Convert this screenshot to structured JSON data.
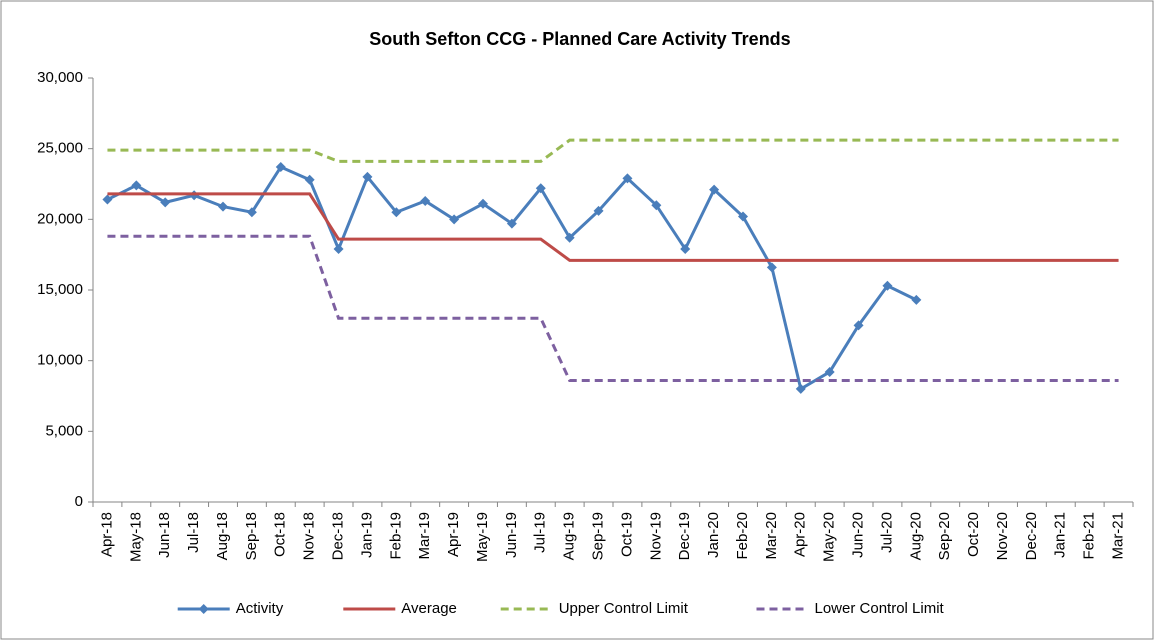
{
  "chart_data": {
    "type": "line",
    "title": "South Sefton CCG - Planned Care Activity Trends",
    "categories": [
      "Apr-18",
      "May-18",
      "Jun-18",
      "Jul-18",
      "Aug-18",
      "Sep-18",
      "Oct-18",
      "Nov-18",
      "Dec-18",
      "Jan-19",
      "Feb-19",
      "Mar-19",
      "Apr-19",
      "May-19",
      "Jun-19",
      "Jul-19",
      "Aug-19",
      "Sep-19",
      "Oct-19",
      "Nov-19",
      "Dec-19",
      "Jan-20",
      "Feb-20",
      "Mar-20",
      "Apr-20",
      "May-20",
      "Jun-20",
      "Jul-20",
      "Aug-20",
      "Sep-20",
      "Oct-20",
      "Nov-20",
      "Dec-20",
      "Jan-21",
      "Feb-21",
      "Mar-21"
    ],
    "series": [
      {
        "name": "Activity",
        "color": "#4a7ebb",
        "dash": "solid",
        "marker": "diamond",
        "values": [
          21400,
          22400,
          21200,
          21700,
          20900,
          20500,
          23700,
          22800,
          17900,
          23000,
          20500,
          21300,
          20000,
          21100,
          19700,
          22200,
          18700,
          20600,
          22900,
          21000,
          17900,
          22100,
          20200,
          16600,
          8000,
          9200,
          12500,
          15300,
          14300,
          null,
          null,
          null,
          null,
          null,
          null,
          null
        ]
      },
      {
        "name": "Average",
        "color": "#be4b48",
        "dash": "solid",
        "values": [
          21800,
          21800,
          21800,
          21800,
          21800,
          21800,
          21800,
          21800,
          18600,
          18600,
          18600,
          18600,
          18600,
          18600,
          18600,
          18600,
          17100,
          17100,
          17100,
          17100,
          17100,
          17100,
          17100,
          17100,
          17100,
          17100,
          17100,
          17100,
          17100,
          17100,
          17100,
          17100,
          17100,
          17100,
          17100,
          17100
        ]
      },
      {
        "name": "Upper Control Limit",
        "color": "#98b954",
        "dash": "dashed",
        "values": [
          24900,
          24900,
          24900,
          24900,
          24900,
          24900,
          24900,
          24900,
          24100,
          24100,
          24100,
          24100,
          24100,
          24100,
          24100,
          24100,
          25600,
          25600,
          25600,
          25600,
          25600,
          25600,
          25600,
          25600,
          25600,
          25600,
          25600,
          25600,
          25600,
          25600,
          25600,
          25600,
          25600,
          25600,
          25600,
          25600
        ]
      },
      {
        "name": "Lower Control Limit",
        "color": "#7d60a0",
        "dash": "dashed",
        "values": [
          18800,
          18800,
          18800,
          18800,
          18800,
          18800,
          18800,
          18800,
          13000,
          13000,
          13000,
          13000,
          13000,
          13000,
          13000,
          13000,
          8600,
          8600,
          8600,
          8600,
          8600,
          8600,
          8600,
          8600,
          8600,
          8600,
          8600,
          8600,
          8600,
          8600,
          8600,
          8600,
          8600,
          8600,
          8600,
          8600
        ]
      }
    ],
    "ylim": [
      0,
      30000
    ],
    "yticks": [
      0,
      {
        "value": 5000,
        "label": "5,000"
      },
      {
        "value": 10000,
        "label": "10,000"
      },
      {
        "value": 15000,
        "label": "15,000"
      },
      {
        "value": 20000,
        "label": "20,000"
      },
      {
        "value": 25000,
        "label": "25,000"
      },
      {
        "value": 30000,
        "label": "30,000"
      }
    ],
    "grid": false,
    "legend": "bottom"
  }
}
